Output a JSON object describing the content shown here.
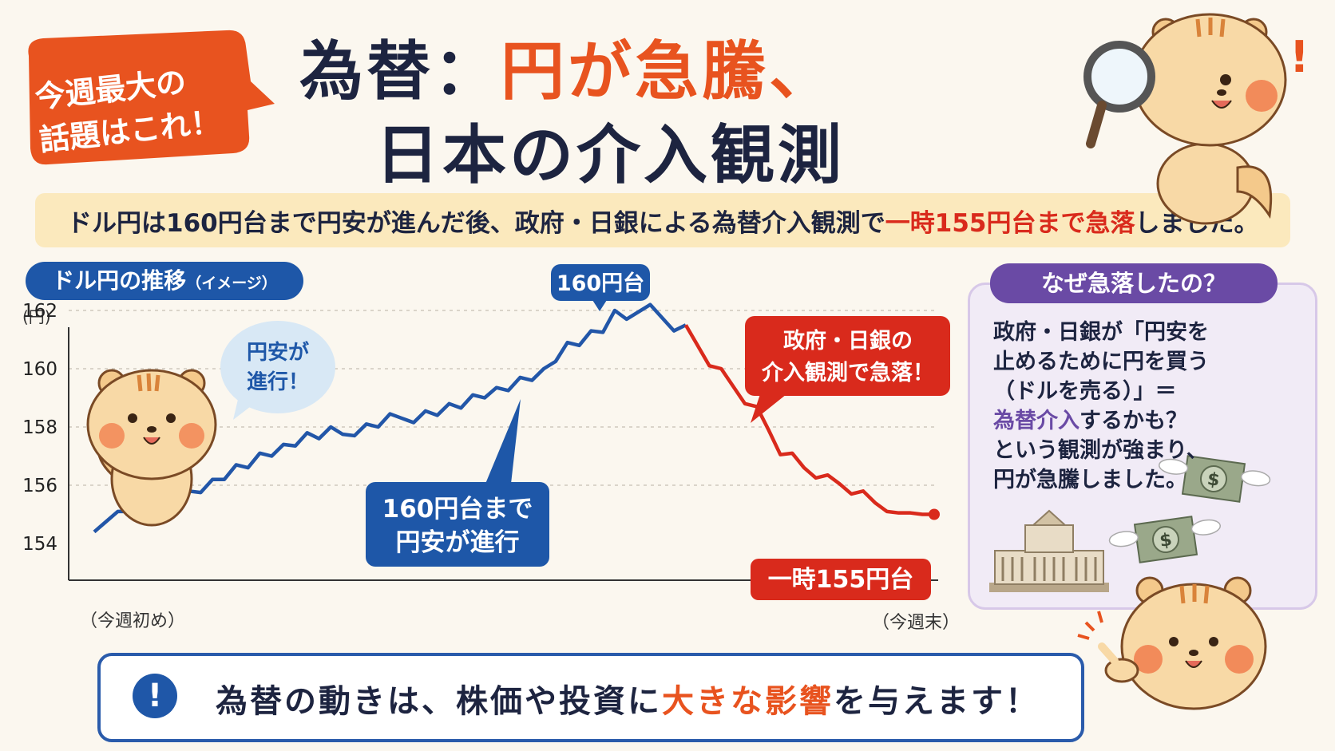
{
  "bubble": {
    "line1": "今週最大の",
    "line2": "話題はこれ！"
  },
  "title": {
    "line1_prefix": "為替：",
    "line1_highlight": "円が急騰、",
    "line2": "日本の介入観測"
  },
  "subtitle": {
    "prefix": "ドル円は160円台まで円安が進んだ後、政府・日銀による為替介入観測で",
    "highlight": "一時155円台まで急落",
    "suffix": "しました。"
  },
  "chart_pill": {
    "main": "ドル円の推移",
    "note": "（イメージ）"
  },
  "chart_data": {
    "type": "line",
    "ylabel": "(円)",
    "ylim": [
      154,
      162.5
    ],
    "yticks": [
      162,
      160,
      158,
      156,
      154
    ],
    "x_start_label": "（今週初め）",
    "x_end_label": "（今週末）",
    "series": [
      {
        "color": "#2256a8",
        "values": [
          154.4,
          154.75,
          155.1,
          155.1,
          155.4,
          155.3,
          155.55,
          155.5,
          155.8,
          155.75,
          156.2,
          156.2,
          156.7,
          156.6,
          157.1,
          157.0,
          157.4,
          157.35,
          157.8,
          157.6,
          158.0,
          157.75,
          157.7,
          158.1,
          158.0,
          158.45,
          158.3,
          158.15,
          158.55,
          158.4,
          158.8,
          158.65,
          159.1,
          159.0,
          159.35,
          159.25,
          159.7,
          159.6,
          160.0,
          160.25,
          160.9,
          160.8,
          161.3,
          161.25,
          162.0,
          161.7,
          161.95,
          162.2,
          161.75,
          161.3,
          161.5
        ]
      },
      {
        "color": "#d92a1c",
        "values": [
          161.5,
          160.8,
          160.1,
          160.0,
          159.4,
          158.8,
          158.7,
          157.9,
          157.05,
          157.1,
          156.6,
          156.25,
          156.35,
          156.05,
          155.7,
          155.8,
          155.4,
          155.1,
          155.05,
          155.05,
          155.0,
          155.0
        ]
      }
    ],
    "annotations": {
      "peak": "160円台",
      "up_line1": "160円台まで",
      "up_line2": "円安が進行",
      "speech_line1": "円安が",
      "speech_line2": "進行！",
      "drop_line1": "政府・日銀の",
      "drop_line2": "介入観測で急落！",
      "low": "一時155円台"
    }
  },
  "why": {
    "pill": "なぜ急落したの？",
    "line1": "政府・日銀が「円安を",
    "line2": "止めるために円を買う",
    "line3": "（ドルを売る）」＝",
    "highlight": "為替介入",
    "line4_rest": "するかも？",
    "line5": "という観測が強まり、",
    "line6": "円が急騰しました。",
    "money_symbol": "$"
  },
  "bottom": {
    "icon": "!",
    "prefix": "為替の動きは、株価や投資に",
    "highlight": "大きな影響",
    "suffix": "を与えます！"
  },
  "exclamation": "!",
  "colors": {
    "navy": "#1d2440",
    "orange": "#e8531f",
    "blue": "#2256a8",
    "red": "#d92a1c",
    "purple": "#6a4aa5"
  }
}
